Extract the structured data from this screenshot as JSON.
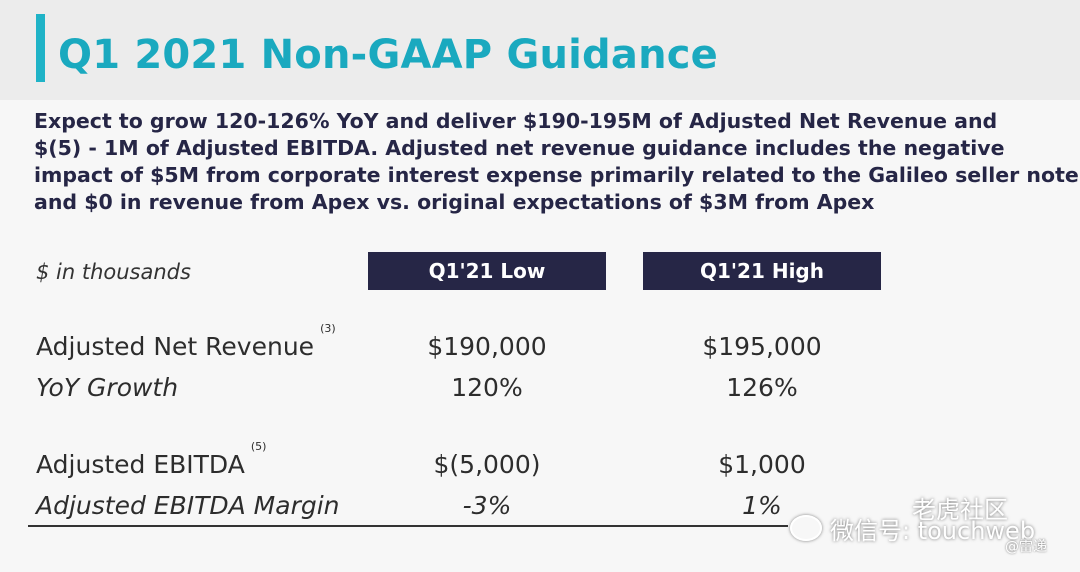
{
  "title": "Q1 2021 Non-GAAP Guidance",
  "summary_lines": [
    "Expect to grow 120-126% YoY and deliver $190-195M of Adjusted Net Revenue and",
    "$(5) - 1M of Adjusted EBITDA. Adjusted net revenue guidance includes the negative",
    "impact of $5M from corporate interest expense primarily related to the Galileo seller note",
    "and $0 in revenue from Apex vs. original expectations of $3M from Apex"
  ],
  "table": {
    "units_label": "$ in thousands",
    "columns": [
      "Q1'21 Low",
      "Q1'21 High"
    ],
    "rows": [
      {
        "label": "Adjusted Net Revenue",
        "note": "(3)",
        "low": "$190,000",
        "high": "$195,000"
      },
      {
        "label": "YoY Growth",
        "note": "",
        "low": "120%",
        "high": "126%"
      },
      {
        "label": "Adjusted EBITDA",
        "note": "(5)",
        "low": "$(5,000)",
        "high": "$1,000"
      },
      {
        "label": "Adjusted EBITDA Margin",
        "note": "",
        "low": "-3%",
        "high": "1%"
      }
    ]
  },
  "watermark": {
    "brand": "老虎社区",
    "wechat": "微信号: touchweb",
    "handle": "@雷递"
  },
  "colors": {
    "title": "#1aa9bf",
    "accent": "#1fb3c7",
    "header_bg": "#262646",
    "summary_text": "#262646"
  }
}
